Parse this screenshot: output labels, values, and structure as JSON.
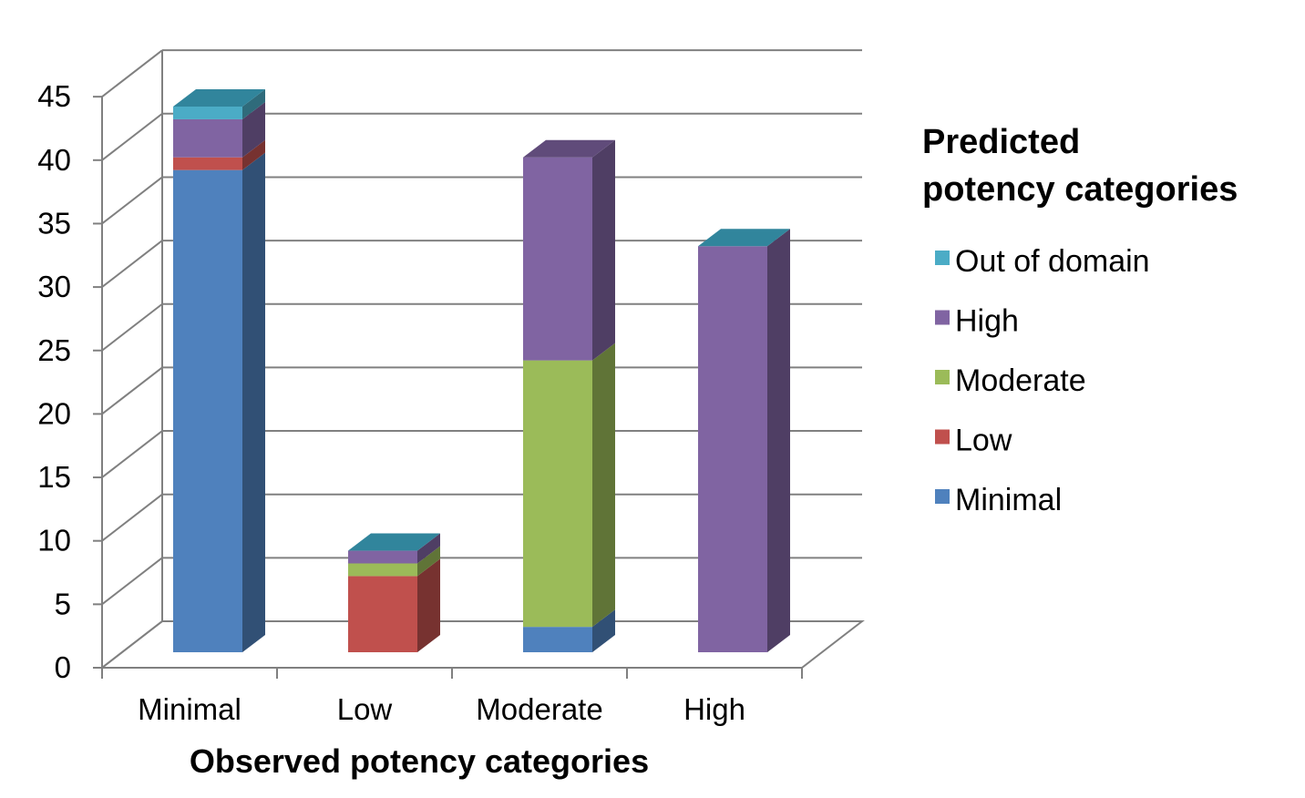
{
  "chart_data": {
    "type": "bar",
    "stacked": true,
    "style": "3d",
    "xlabel": "Observed potency categories",
    "ylabel": "",
    "ylim": [
      0,
      45
    ],
    "yticks": [
      0,
      5,
      10,
      15,
      20,
      25,
      30,
      35,
      40,
      45
    ],
    "categories": [
      "Minimal",
      "Low",
      "Moderate",
      "High"
    ],
    "legend": {
      "title": "Predicted potency categories",
      "placement": "right"
    },
    "series": [
      {
        "name": "Minimal",
        "color": "#4F81BD",
        "values": [
          38,
          0,
          2,
          0
        ]
      },
      {
        "name": "Low",
        "color": "#C0504D",
        "values": [
          1,
          6,
          0,
          0
        ]
      },
      {
        "name": "Moderate",
        "color": "#9BBB59",
        "values": [
          0,
          1,
          21,
          0
        ]
      },
      {
        "name": "High",
        "color": "#8064A2",
        "values": [
          3,
          1,
          16,
          32
        ]
      },
      {
        "name": "Out of domain",
        "color": "#4BACC6",
        "values": [
          1,
          0,
          0,
          0
        ]
      }
    ],
    "grid": true
  }
}
